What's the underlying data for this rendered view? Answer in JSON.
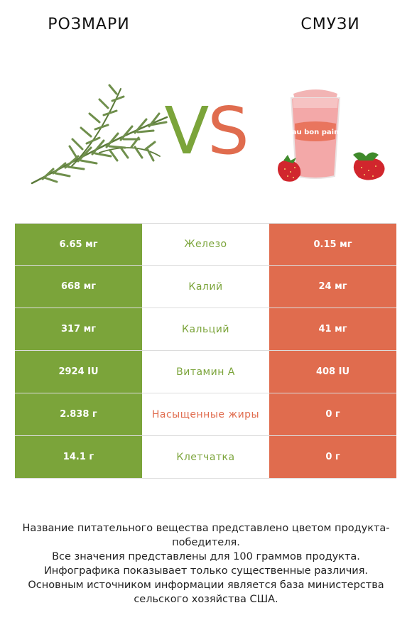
{
  "header": {
    "left_title": "РОЗМАРИ",
    "right_title": "СМУЗИ",
    "vs_v": "V",
    "vs_s": "S",
    "cup_brand": "au bon pain"
  },
  "colors": {
    "left_accent": "#7ba43a",
    "right_accent": "#e06c4e"
  },
  "rows": [
    {
      "left": "6.65 мг",
      "nutrient": "Железо",
      "right": "0.15 мг",
      "winner": "left"
    },
    {
      "left": "668 мг",
      "nutrient": "Калий",
      "right": "24 мг",
      "winner": "left"
    },
    {
      "left": "317 мг",
      "nutrient": "Кальций",
      "right": "41 мг",
      "winner": "left"
    },
    {
      "left": "2924 IU",
      "nutrient": "Витамин A",
      "right": "408 IU",
      "winner": "left"
    },
    {
      "left": "2.838 г",
      "nutrient": "Насыщенные жиры",
      "right": "0 г",
      "winner": "right"
    },
    {
      "left": "14.1 г",
      "nutrient": "Клетчатка",
      "right": "0 г",
      "winner": "left"
    }
  ],
  "footer": {
    "line1": "Название питательного вещества представлено цветом продукта-победителя.",
    "line2": "Все значения представлены для 100 граммов продукта.",
    "line3": "Инфографика показывает только существенные различия.",
    "line4": "Основным источником информации является база министерства сельского хозяйства США."
  }
}
